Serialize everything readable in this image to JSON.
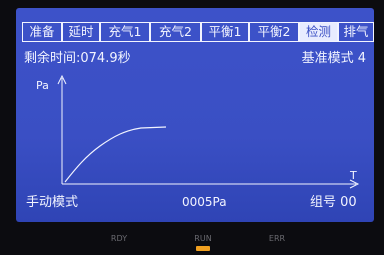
{
  "tabs": [
    "准备",
    "延时",
    "充气1",
    "充气2",
    "平衡1",
    "平衡2",
    "检测",
    "排气"
  ],
  "active_tab": 6,
  "status": {
    "remaining_time": "剩余时间:074.9秒",
    "mode": "基准模式 4"
  },
  "graph": {
    "y_axis_label": "Pa",
    "x_axis_label": "T"
  },
  "footer": {
    "mode": "手动模式",
    "pressure": "0005Pa",
    "group": "组号 00"
  },
  "leds": [
    "RDY",
    "RUN",
    "ERR"
  ]
}
